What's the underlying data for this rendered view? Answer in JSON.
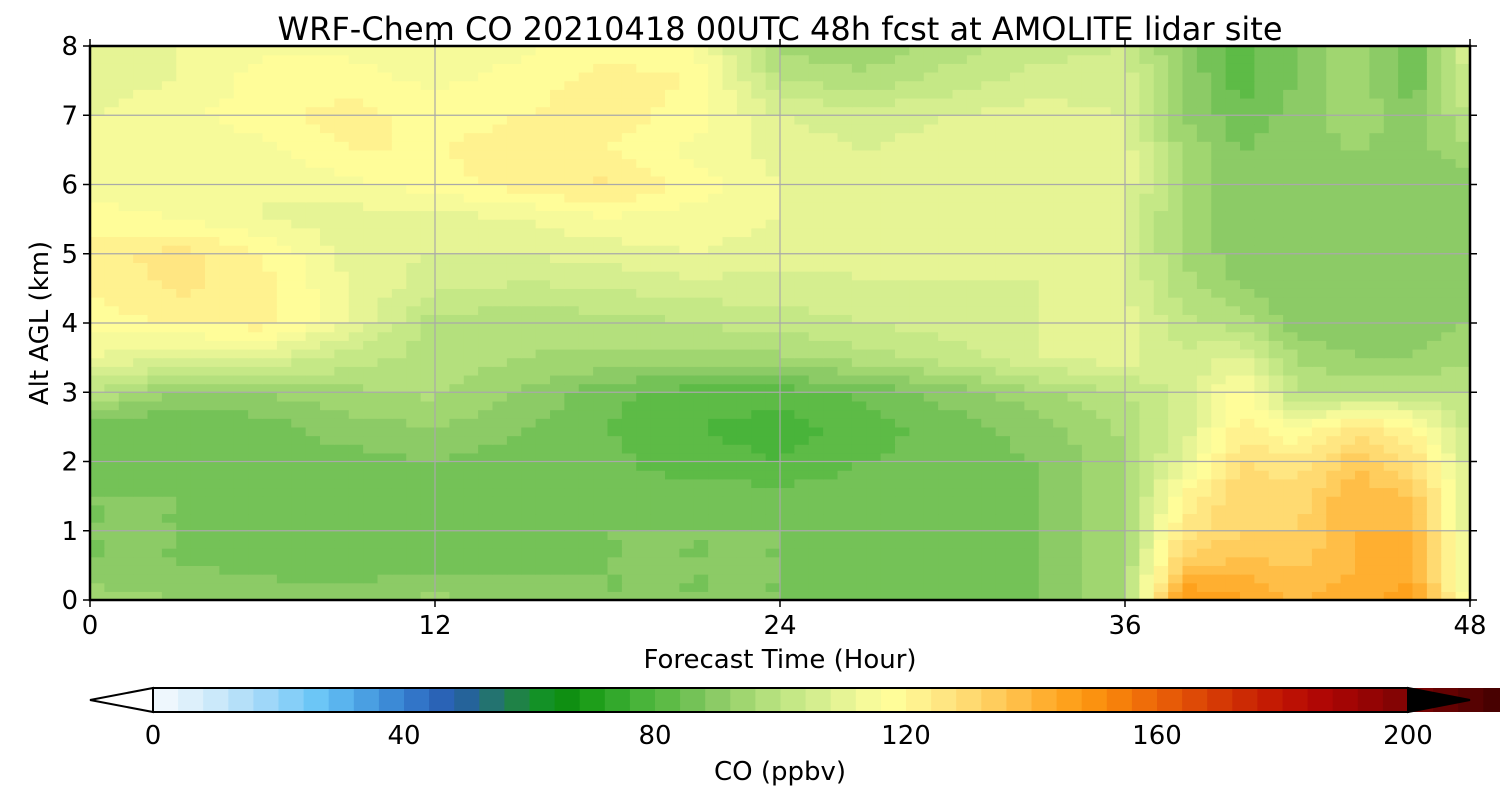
{
  "chart_data": {
    "type": "heatmap",
    "title": "WRF-Chem CO  20210418 00UTC 48h fcst at AMOLITE lidar site",
    "xlabel": "Forecast Time (Hour)",
    "ylabel": "Alt AGL (km)",
    "xlim": [
      0,
      48
    ],
    "ylim": [
      0,
      8
    ],
    "xticks": [
      "0",
      "12",
      "24",
      "36",
      "48"
    ],
    "yticks": [
      "0",
      "1",
      "2",
      "3",
      "4",
      "5",
      "6",
      "7",
      "8"
    ],
    "grid": true,
    "x": [
      0,
      3,
      6,
      9,
      12,
      15,
      18,
      21,
      24,
      27,
      30,
      33,
      36,
      38,
      40,
      42,
      44,
      46,
      48
    ],
    "y": [
      0,
      0.5,
      1,
      1.5,
      2,
      2.5,
      3,
      3.5,
      4,
      4.5,
      5,
      5.5,
      6,
      6.5,
      7,
      7.5,
      8
    ],
    "z": [
      [
        95,
        92,
        90,
        90,
        93,
        90,
        88,
        88,
        88,
        88,
        88,
        88,
        95,
        150,
        145,
        140,
        142,
        148,
        112
      ],
      [
        88,
        88,
        87,
        86,
        87,
        87,
        88,
        88,
        88,
        86,
        87,
        88,
        95,
        135,
        138,
        135,
        140,
        140,
        110
      ],
      [
        88,
        88,
        87,
        86,
        87,
        87,
        88,
        88,
        88,
        86,
        87,
        88,
        95,
        125,
        132,
        132,
        140,
        140,
        108
      ],
      [
        88,
        88,
        87,
        86,
        87,
        85,
        85,
        86,
        86,
        87,
        88,
        88,
        95,
        120,
        132,
        130,
        140,
        135,
        108
      ],
      [
        86,
        86,
        88,
        86,
        88,
        86,
        85,
        82,
        80,
        84,
        86,
        88,
        95,
        110,
        128,
        125,
        135,
        128,
        105
      ],
      [
        84,
        84,
        86,
        90,
        92,
        88,
        84,
        80,
        78,
        82,
        86,
        90,
        97,
        105,
        122,
        115,
        125,
        120,
        102
      ],
      [
        100,
        92,
        92,
        95,
        97,
        92,
        85,
        82,
        82,
        85,
        90,
        95,
        100,
        105,
        118,
        100,
        100,
        100,
        100
      ],
      [
        112,
        108,
        108,
        102,
        98,
        96,
        95,
        95,
        95,
        98,
        102,
        108,
        110,
        104,
        110,
        95,
        92,
        92,
        95
      ],
      [
        118,
        120,
        122,
        112,
        98,
        97,
        98,
        100,
        102,
        104,
        106,
        108,
        110,
        102,
        98,
        90,
        90,
        90,
        92
      ],
      [
        120,
        125,
        122,
        112,
        105,
        103,
        104,
        106,
        106,
        107,
        107,
        108,
        108,
        98,
        92,
        88,
        88,
        88,
        90
      ],
      [
        122,
        126,
        120,
        110,
        108,
        108,
        110,
        112,
        110,
        110,
        110,
        108,
        108,
        95,
        90,
        88,
        88,
        88,
        90
      ],
      [
        118,
        116,
        112,
        110,
        110,
        112,
        115,
        114,
        112,
        112,
        110,
        108,
        108,
        95,
        90,
        88,
        88,
        88,
        90
      ],
      [
        115,
        112,
        112,
        115,
        118,
        122,
        125,
        118,
        112,
        110,
        112,
        112,
        110,
        95,
        90,
        90,
        92,
        88,
        90
      ],
      [
        112,
        112,
        115,
        120,
        120,
        122,
        120,
        115,
        110,
        108,
        110,
        112,
        110,
        95,
        88,
        90,
        92,
        90,
        95
      ],
      [
        112,
        115,
        118,
        122,
        118,
        120,
        122,
        118,
        108,
        106,
        108,
        110,
        108,
        92,
        85,
        90,
        95,
        90,
        100
      ],
      [
        110,
        112,
        118,
        118,
        115,
        118,
        122,
        120,
        100,
        98,
        102,
        106,
        106,
        92,
        82,
        88,
        95,
        85,
        105
      ],
      [
        110,
        112,
        115,
        115,
        112,
        115,
        118,
        116,
        95,
        92,
        98,
        102,
        104,
        90,
        82,
        88,
        95,
        85,
        108
      ]
    ],
    "colorbar": {
      "label": "CO  (ppbv)",
      "min": 0,
      "max": 200,
      "step": 4,
      "ticks": [
        "0",
        "40",
        "80",
        "120",
        "160",
        "200"
      ],
      "extend": "both",
      "colors": [
        "#ffffff",
        "#eef7fd",
        "#ddf0fb",
        "#cbe9fa",
        "#b5e0f9",
        "#9fd7f9",
        "#86cff8",
        "#6cc6f6",
        "#5ab4ee",
        "#4a9fe2",
        "#3c8ad6",
        "#3275c8",
        "#2a63b6",
        "#25639a",
        "#237370",
        "#1f8247",
        "#139126",
        "#0f8f12",
        "#1e9e1a",
        "#33a92c",
        "#49b43a",
        "#5dbb46",
        "#74c257",
        "#8ccb66",
        "#a0d670",
        "#b4e07d",
        "#c5e886",
        "#d5ee8f",
        "#e6f495",
        "#f6fa9a",
        "#fffd99",
        "#fff28f",
        "#ffe682",
        "#ffda71",
        "#ffcd5d",
        "#ffbe47",
        "#ffaf30",
        "#fea11c",
        "#fb9210",
        "#f6800b",
        "#ef6d09",
        "#e75b07",
        "#de4a06",
        "#d53905",
        "#cc2a04",
        "#c41b03",
        "#bb1004",
        "#b00705",
        "#a30504",
        "#940404",
        "#840404",
        "#740303",
        "#640202",
        "#560202",
        "#480101",
        "#3b0101",
        "#2f0000",
        "#240000",
        "#180000",
        "#0c0000",
        "#000000"
      ]
    }
  }
}
